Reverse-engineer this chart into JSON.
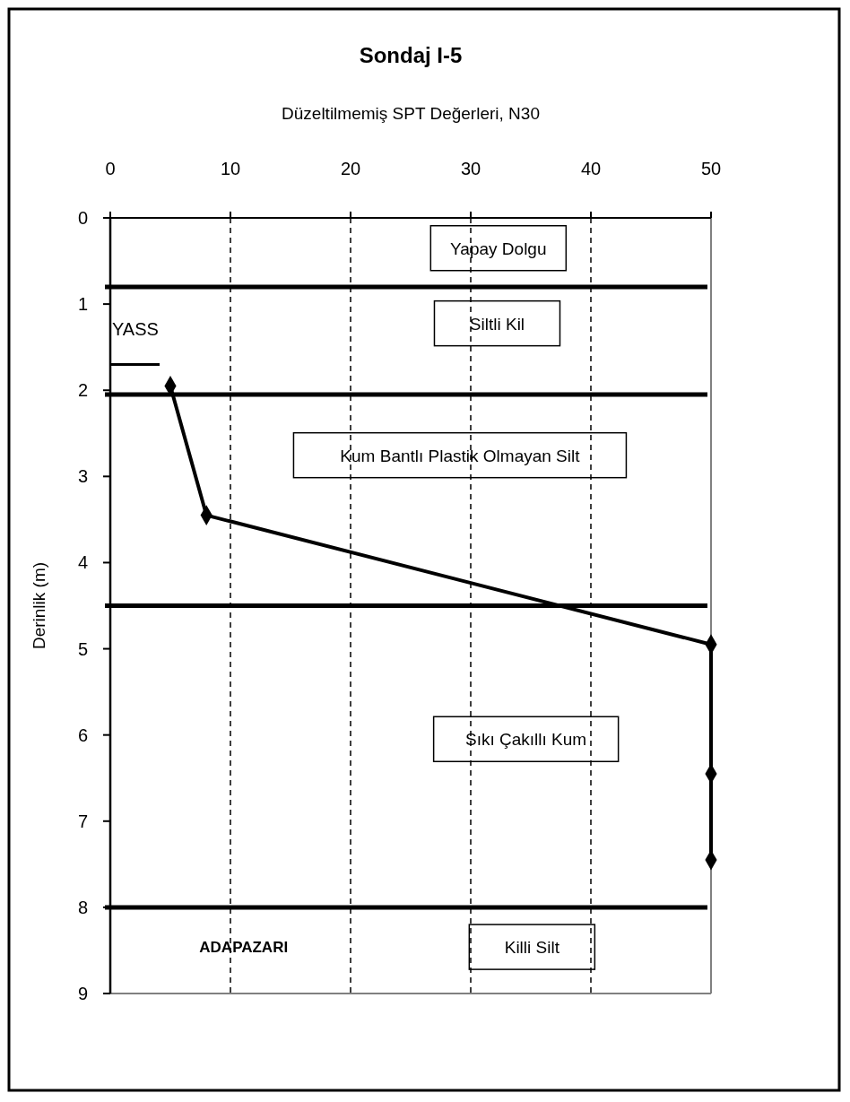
{
  "chart_data": {
    "type": "line",
    "title": "Sondaj I-5",
    "xlabel": "Düzeltilmemiş SPT Değerleri, N30",
    "ylabel": "Derinlik (m)",
    "series": [
      {
        "color": "#000000",
        "x": [
          5,
          8,
          50,
          50,
          50
        ],
        "values": [
          1.95,
          3.45,
          4.95,
          6.45,
          7.45
        ]
      }
    ],
    "xlim": [
      0,
      50
    ],
    "xticks": [
      0,
      10,
      20,
      30,
      40,
      50
    ],
    "ylim": [
      9,
      0
    ],
    "yticks": [
      0,
      1,
      2,
      3,
      4,
      5,
      6,
      7,
      8,
      9
    ],
    "grid": "x",
    "marker": "diamond",
    "line_style": "solid",
    "ref_lines": [
      {
        "axis": "y",
        "value": 0.8,
        "color": "#000000"
      },
      {
        "axis": "y",
        "value": 1.7,
        "label": "YASS",
        "color": "#000000"
      },
      {
        "axis": "y",
        "value": 2.05,
        "color": "#000000"
      },
      {
        "axis": "y",
        "value": 4.5,
        "color": "#000000"
      },
      {
        "axis": "y",
        "value": 8.0,
        "color": "#000000"
      }
    ],
    "annotations": [
      "Yapay Dolgu",
      "Siltli Kil",
      "Kum Bantlı Plastik Olmayan Silt",
      "Sıkı Çakıllı Kum",
      "Killi Silt",
      "ADAPAZARI"
    ]
  }
}
